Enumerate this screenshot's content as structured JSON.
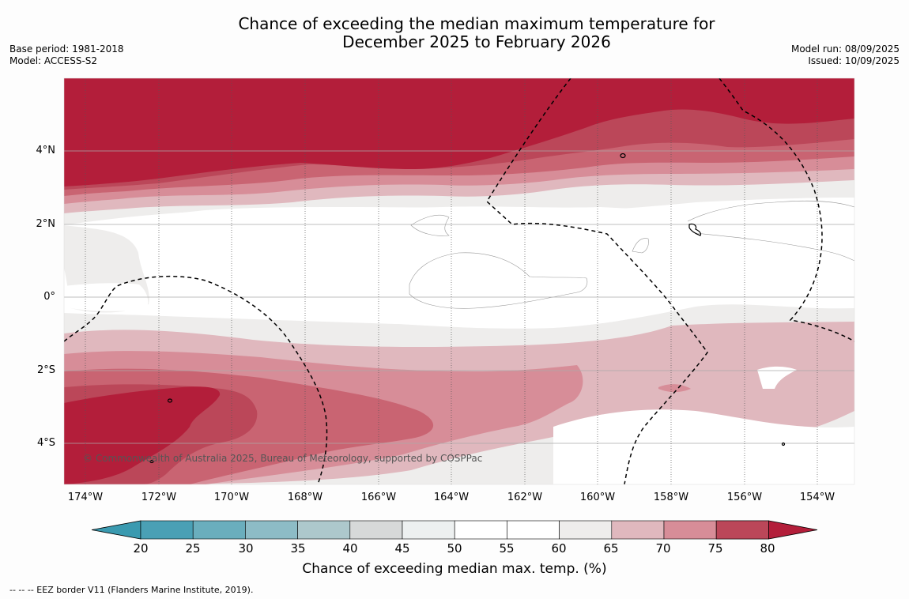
{
  "title_line1": "Chance of exceeding the median maximum temperature for",
  "title_line2": "December 2025 to February 2026",
  "base_period": "Base period: 1981-2018",
  "model": "Model: ACCESS-S2",
  "model_run": "Model run: 08/09/2025",
  "issued": "Issued: 10/09/2025",
  "lat_labels": [
    "4°N",
    "2°N",
    "0°",
    "2°S",
    "4°S"
  ],
  "lon_labels": [
    "174°W",
    "172°W",
    "170°W",
    "168°W",
    "166°W",
    "164°W",
    "162°W",
    "160°W",
    "158°W",
    "156°W",
    "154°W"
  ],
  "copyright": "© Commonwealth of Australia 2025, Bureau of Meteorology, supported by COSPPac",
  "colorbar": {
    "ticks": [
      "20",
      "25",
      "30",
      "35",
      "40",
      "45",
      "50",
      "55",
      "60",
      "65",
      "70",
      "75",
      "80"
    ],
    "colors": [
      "#4aa0b5",
      "#6aaebd",
      "#8dbcc6",
      "#adc8cc",
      "#d7d9d9",
      "#edf0f0",
      "#ffffff",
      "#ffffff",
      "#eeedec",
      "#e0b8be",
      "#d78d98",
      "#c96472",
      "#bb4759"
    ],
    "low_color": "#3a9ab0",
    "high_color": "#b31e3a",
    "title": "Chance of exceeding median max. temp. (%)"
  },
  "footnote": "--  --  -- EEZ border V11 (Flanders Marine Institute, 2019)."
}
